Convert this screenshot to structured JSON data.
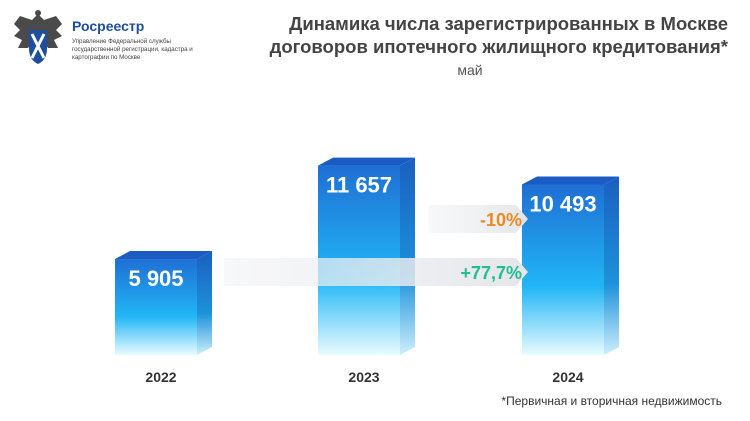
{
  "header": {
    "org_name": "Росреестр",
    "org_subtitle": "Управление Федеральной службы государственной регистрации, кадастра и картографии по Москве",
    "title_line1": "Динамика числа зарегистрированных в Москве",
    "title_line2": "договоров ипотечного жилищного кредитования*",
    "subtitle": "май"
  },
  "footnote": "*Первичная и вторичная недвижимость",
  "colors": {
    "bar_top": "#1f6fd4",
    "bar_bottom": "#e9fbff",
    "bar_side": "#1a5fc0",
    "negative": "#ea8a1e",
    "positive": "#1fbf8f",
    "title": "#444444"
  },
  "chart_data": {
    "type": "bar",
    "categories": [
      "2022",
      "2023",
      "2024"
    ],
    "values": [
      5905,
      11657,
      10493
    ],
    "value_labels": [
      "5 905",
      "11 657",
      "10 493"
    ],
    "ylim": [
      0,
      12000
    ],
    "annotations": [
      {
        "from": "2023",
        "to": "2024",
        "label": "-10%"
      },
      {
        "from": "2022",
        "to": "2024",
        "label": "+77,7%"
      }
    ]
  }
}
